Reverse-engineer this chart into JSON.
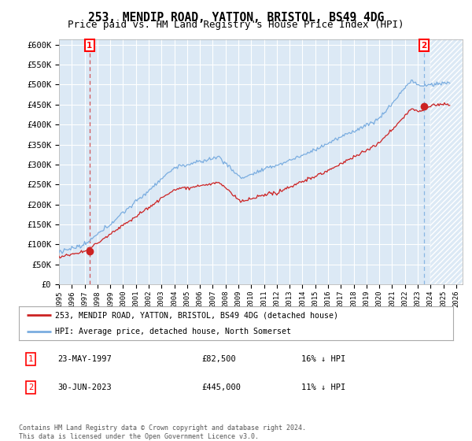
{
  "title": "253, MENDIP ROAD, YATTON, BRISTOL, BS49 4DG",
  "subtitle": "Price paid vs. HM Land Registry's House Price Index (HPI)",
  "ylim": [
    0,
    612500
  ],
  "yticks": [
    0,
    50000,
    100000,
    150000,
    200000,
    250000,
    300000,
    350000,
    400000,
    450000,
    500000,
    550000,
    600000
  ],
  "ytick_labels": [
    "£0",
    "£50K",
    "£100K",
    "£150K",
    "£200K",
    "£250K",
    "£300K",
    "£350K",
    "£400K",
    "£450K",
    "£500K",
    "£550K",
    "£600K"
  ],
  "xlim_start": 1995.0,
  "xlim_end": 2026.5,
  "plot_bg_color": "#dce9f5",
  "line1_color": "#cc2222",
  "line2_color": "#7aade0",
  "marker_color": "#cc2222",
  "point1_x": 1997.389,
  "point1_y": 82500,
  "point2_x": 2023.497,
  "point2_y": 445000,
  "point1_label": "1",
  "point2_label": "2",
  "legend_line1": "253, MENDIP ROAD, YATTON, BRISTOL, BS49 4DG (detached house)",
  "legend_line2": "HPI: Average price, detached house, North Somerset",
  "table_row1": [
    "1",
    "23-MAY-1997",
    "£82,500",
    "16% ↓ HPI"
  ],
  "table_row2": [
    "2",
    "30-JUN-2023",
    "£445,000",
    "11% ↓ HPI"
  ],
  "footer": "Contains HM Land Registry data © Crown copyright and database right 2024.\nThis data is licensed under the Open Government Licence v3.0.",
  "title_fontsize": 10.5,
  "subtitle_fontsize": 9,
  "tick_fontsize": 7.5,
  "grid_color": "#ffffff",
  "xticks": [
    1995,
    1996,
    1997,
    1998,
    1999,
    2000,
    2001,
    2002,
    2003,
    2004,
    2005,
    2006,
    2007,
    2008,
    2009,
    2010,
    2011,
    2012,
    2013,
    2014,
    2015,
    2016,
    2017,
    2018,
    2019,
    2020,
    2021,
    2022,
    2023,
    2024,
    2025,
    2026
  ],
  "hatch_start": 2024.0
}
